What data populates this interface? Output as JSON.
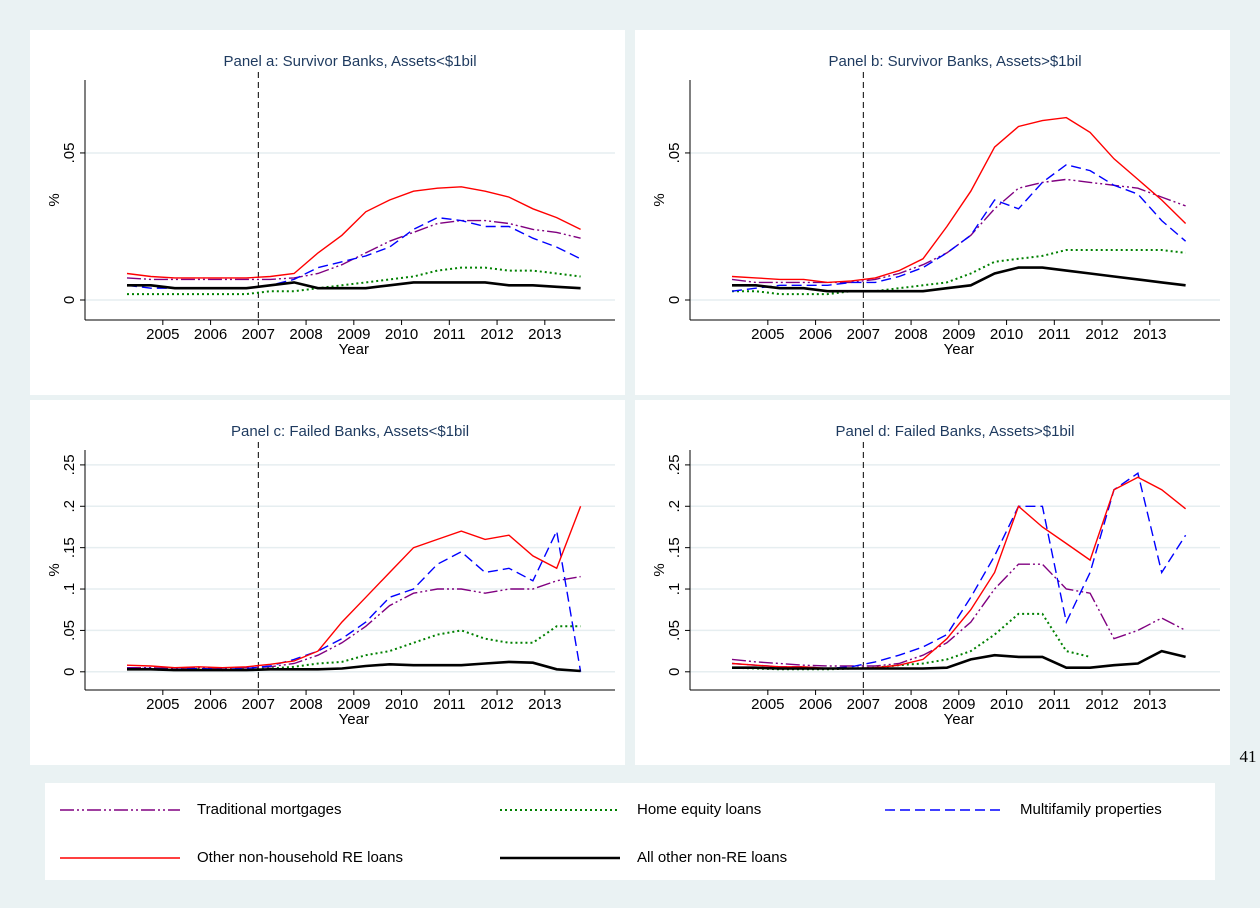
{
  "page_number": "41",
  "chart_data": [
    {
      "type": "line",
      "title": "Panel a: Survivor Banks, Assets<$1bil",
      "xlabel": "Year",
      "ylabel": "%",
      "x": [
        2004.25,
        2004.75,
        2005.25,
        2005.75,
        2006.25,
        2006.75,
        2007.25,
        2007.75,
        2008.25,
        2008.75,
        2009.25,
        2009.75,
        2010.25,
        2010.75,
        2011.25,
        2011.75,
        2012.25,
        2012.75,
        2013.25,
        2013.75
      ],
      "xlim": [
        2003.37,
        2014.47
      ],
      "xticks": [
        2005,
        2006,
        2007,
        2008,
        2009,
        2010,
        2011,
        2012,
        2013
      ],
      "xline": 2007,
      "ylim": [
        -0.0068,
        0.0748
      ],
      "yticks": [
        0,
        {
          "value": 0.05,
          "label": ".05"
        }
      ],
      "grid": true,
      "series": [
        {
          "name": "Traditional mortgages",
          "color": "#800080",
          "dash": "dash-dot-dot",
          "values": [
            0.0075,
            0.007,
            0.007,
            0.007,
            0.007,
            0.007,
            0.007,
            0.0075,
            0.009,
            0.012,
            0.016,
            0.02,
            0.023,
            0.026,
            0.027,
            0.027,
            0.026,
            0.024,
            0.023,
            0.021
          ]
        },
        {
          "name": "Home equity loans",
          "color": "#008000",
          "dash": "dotted",
          "values": [
            0.002,
            0.002,
            0.002,
            0.002,
            0.002,
            0.002,
            0.003,
            0.003,
            0.004,
            0.005,
            0.006,
            0.007,
            0.008,
            0.01,
            0.011,
            0.011,
            0.01,
            0.01,
            0.009,
            0.008
          ]
        },
        {
          "name": "Multifamily properties",
          "color": "#0000ff",
          "dash": "dashed",
          "values": [
            0.005,
            0.004,
            0.004,
            0.004,
            0.004,
            0.004,
            0.005,
            0.007,
            0.011,
            0.013,
            0.015,
            0.018,
            0.024,
            0.028,
            0.027,
            0.025,
            0.025,
            0.021,
            0.018,
            0.014
          ]
        },
        {
          "name": "Other non-household RE loans",
          "color": "#ff0000",
          "dash": "solid",
          "values": [
            0.009,
            0.008,
            0.0075,
            0.0075,
            0.0075,
            0.0075,
            0.008,
            0.009,
            0.016,
            0.022,
            0.03,
            0.034,
            0.037,
            0.038,
            0.0385,
            0.037,
            0.035,
            0.031,
            0.028,
            0.024
          ]
        },
        {
          "name": "All other non-RE loans",
          "color": "#000000",
          "dash": "thick",
          "values": [
            0.005,
            0.005,
            0.004,
            0.004,
            0.004,
            0.004,
            0.005,
            0.006,
            0.004,
            0.004,
            0.004,
            0.005,
            0.006,
            0.006,
            0.006,
            0.006,
            0.005,
            0.005,
            0.0045,
            0.004
          ]
        }
      ]
    },
    {
      "type": "line",
      "title": "Panel b: Survivor Banks, Assets>$1bil",
      "xlabel": "Year",
      "ylabel": "%",
      "x": [
        2004.25,
        2004.75,
        2005.25,
        2005.75,
        2006.25,
        2006.75,
        2007.25,
        2007.75,
        2008.25,
        2008.75,
        2009.25,
        2009.75,
        2010.25,
        2010.75,
        2011.25,
        2011.75,
        2012.25,
        2012.75,
        2013.25,
        2013.75
      ],
      "xlim": [
        2003.37,
        2014.47
      ],
      "xticks": [
        2005,
        2006,
        2007,
        2008,
        2009,
        2010,
        2011,
        2012,
        2013
      ],
      "xline": 2007,
      "ylim": [
        -0.0068,
        0.0748
      ],
      "yticks": [
        0,
        {
          "value": 0.05,
          "label": ".05"
        }
      ],
      "grid": true,
      "series": [
        {
          "name": "Traditional mortgages",
          "color": "#800080",
          "dash": "dash-dot-dot",
          "values": [
            0.007,
            0.006,
            0.006,
            0.006,
            0.006,
            0.006,
            0.007,
            0.009,
            0.012,
            0.016,
            0.022,
            0.031,
            0.038,
            0.04,
            0.041,
            0.04,
            0.039,
            0.038,
            0.035,
            0.032
          ]
        },
        {
          "name": "Home equity loans",
          "color": "#008000",
          "dash": "dotted",
          "values": [
            0.003,
            0.003,
            0.002,
            0.002,
            0.002,
            0.003,
            0.003,
            0.004,
            0.005,
            0.006,
            0.009,
            0.013,
            0.014,
            0.015,
            0.017,
            0.017,
            0.017,
            0.017,
            0.017,
            0.016
          ]
        },
        {
          "name": "Multifamily properties",
          "color": "#0000ff",
          "dash": "dashed",
          "values": [
            0.003,
            0.004,
            0.005,
            0.005,
            0.005,
            0.006,
            0.006,
            0.008,
            0.011,
            0.016,
            0.022,
            0.034,
            0.031,
            0.04,
            0.046,
            0.044,
            0.039,
            0.036,
            0.027,
            0.02
          ]
        },
        {
          "name": "Other non-household RE loans",
          "color": "#ff0000",
          "dash": "solid",
          "values": [
            0.008,
            0.0075,
            0.007,
            0.007,
            0.006,
            0.0065,
            0.0075,
            0.01,
            0.014,
            0.025,
            0.037,
            0.052,
            0.059,
            0.061,
            0.062,
            0.057,
            0.048,
            0.041,
            0.034,
            0.026
          ]
        },
        {
          "name": "All other non-RE loans",
          "color": "#000000",
          "dash": "thick",
          "values": [
            0.005,
            0.005,
            0.004,
            0.004,
            0.003,
            0.003,
            0.003,
            0.003,
            0.003,
            0.004,
            0.005,
            0.009,
            0.011,
            0.011,
            0.01,
            0.009,
            0.008,
            0.007,
            0.006,
            0.005
          ]
        }
      ]
    },
    {
      "type": "line",
      "title": "Panel c: Failed Banks, Assets<$1bil",
      "xlabel": "Year",
      "ylabel": "%",
      "x": [
        2004.25,
        2004.75,
        2005.25,
        2005.75,
        2006.25,
        2006.75,
        2007.25,
        2007.75,
        2008.25,
        2008.75,
        2009.25,
        2009.75,
        2010.25,
        2010.75,
        2011.25,
        2011.75,
        2012.25,
        2012.75,
        2013.25,
        2013.75
      ],
      "xlim": [
        2003.37,
        2014.47
      ],
      "xticks": [
        2005,
        2006,
        2007,
        2008,
        2009,
        2010,
        2011,
        2012,
        2013
      ],
      "xline": 2007,
      "ylim": [
        -0.022,
        0.268
      ],
      "yticks": [
        0,
        {
          "value": 0.05,
          "label": ".05"
        },
        {
          "value": 0.1,
          "label": ".1"
        },
        {
          "value": 0.15,
          "label": ".15"
        },
        {
          "value": 0.2,
          "label": ".2"
        },
        {
          "value": 0.25,
          "label": ".25"
        }
      ],
      "grid": true,
      "series": [
        {
          "name": "Traditional mortgages",
          "color": "#800080",
          "dash": "dash-dot-dot",
          "values": [
            0.005,
            0.005,
            0.004,
            0.005,
            0.004,
            0.005,
            0.006,
            0.01,
            0.02,
            0.035,
            0.055,
            0.08,
            0.095,
            0.1,
            0.1,
            0.095,
            0.1,
            0.1,
            0.11,
            0.115
          ]
        },
        {
          "name": "Home equity loans",
          "color": "#008000",
          "dash": "dotted",
          "values": [
            0.003,
            0.003,
            0.002,
            0.003,
            0.002,
            0.003,
            0.004,
            0.006,
            0.01,
            0.012,
            0.02,
            0.025,
            0.035,
            0.045,
            0.05,
            0.04,
            0.035,
            0.035,
            0.055,
            0.055
          ]
        },
        {
          "name": "Multifamily properties",
          "color": "#0000ff",
          "dash": "dashed",
          "values": [
            0.004,
            0.004,
            0.003,
            0.004,
            0.003,
            0.004,
            0.007,
            0.015,
            0.025,
            0.04,
            0.06,
            0.09,
            0.1,
            0.13,
            0.145,
            0.12,
            0.125,
            0.11,
            0.17,
            0
          ]
        },
        {
          "name": "Other non-household RE loans",
          "color": "#ff0000",
          "dash": "solid",
          "values": [
            0.008,
            0.007,
            0.005,
            0.006,
            0.005,
            0.006,
            0.009,
            0.013,
            0.025,
            0.06,
            0.09,
            0.12,
            0.15,
            0.16,
            0.17,
            0.16,
            0.165,
            0.14,
            0.125,
            0.2
          ]
        },
        {
          "name": "All other non-RE loans",
          "color": "#000000",
          "dash": "thick",
          "values": [
            0.003,
            0.003,
            0.002,
            0.002,
            0.002,
            0.002,
            0.003,
            0.003,
            0.003,
            0.004,
            0.007,
            0.009,
            0.008,
            0.008,
            0.008,
            0.01,
            0.012,
            0.011,
            0.003,
            0.001
          ]
        }
      ]
    },
    {
      "type": "line",
      "title": "Panel d: Failed Banks, Assets>$1bil",
      "xlabel": "Year",
      "ylabel": "%",
      "x": [
        2004.25,
        2004.75,
        2005.25,
        2005.75,
        2006.25,
        2006.75,
        2007.25,
        2007.75,
        2008.25,
        2008.75,
        2009.25,
        2009.75,
        2010.25,
        2010.75,
        2011.25,
        2011.75,
        2012.25,
        2012.75,
        2013.25,
        2013.75
      ],
      "xlim": [
        2003.37,
        2014.47
      ],
      "xticks": [
        2005,
        2006,
        2007,
        2008,
        2009,
        2010,
        2011,
        2012,
        2013
      ],
      "xline": 2007,
      "ylim": [
        -0.022,
        0.268
      ],
      "yticks": [
        0,
        {
          "value": 0.05,
          "label": ".05"
        },
        {
          "value": 0.1,
          "label": ".1"
        },
        {
          "value": 0.15,
          "label": ".15"
        },
        {
          "value": 0.2,
          "label": ".2"
        },
        {
          "value": 0.25,
          "label": ".25"
        }
      ],
      "grid": true,
      "series": [
        {
          "name": "Traditional mortgages",
          "color": "#800080",
          "dash": "dash-dot-dot",
          "values": [
            0.015,
            0.012,
            0.01,
            0.008,
            0.007,
            0.007,
            0.007,
            0.01,
            0.02,
            0.035,
            0.06,
            0.1,
            0.13,
            0.13,
            0.1,
            0.095,
            0.04,
            0.05,
            0.065,
            0.05
          ]
        },
        {
          "name": "Home equity loans",
          "color": "#008000",
          "dash": "dotted",
          "values": [
            0.005,
            0.004,
            0.003,
            0.003,
            0.003,
            0.004,
            0.005,
            0.008,
            0.01,
            0.015,
            0.025,
            0.045,
            0.07,
            0.07,
            0.025,
            0.018,
            null,
            null,
            null,
            null
          ]
        },
        {
          "name": "Multifamily properties",
          "color": "#0000ff",
          "dash": "dashed",
          "values": [
            0.01,
            0.008,
            0.006,
            0.006,
            0.004,
            0.006,
            0.012,
            0.02,
            0.03,
            0.045,
            0.09,
            0.14,
            0.2,
            0.2,
            0.06,
            0.12,
            0.22,
            0.24,
            0.12,
            0.165
          ]
        },
        {
          "name": "Other non-household RE loans",
          "color": "#ff0000",
          "dash": "solid",
          "values": [
            0.01,
            0.008,
            0.006,
            0.006,
            0.004,
            0.004,
            0.005,
            0.008,
            0.015,
            0.04,
            0.075,
            0.12,
            0.2,
            0.175,
            0.155,
            0.135,
            0.22,
            0.235,
            0.22,
            0.197
          ]
        },
        {
          "name": "All other non-RE loans",
          "color": "#000000",
          "dash": "thick",
          "values": [
            0.005,
            0.005,
            0.004,
            0.004,
            0.004,
            0.004,
            0.004,
            0.004,
            0.004,
            0.005,
            0.015,
            0.02,
            0.018,
            0.018,
            0.005,
            0.005,
            0.008,
            0.01,
            0.025,
            0.018
          ]
        }
      ]
    }
  ]
}
